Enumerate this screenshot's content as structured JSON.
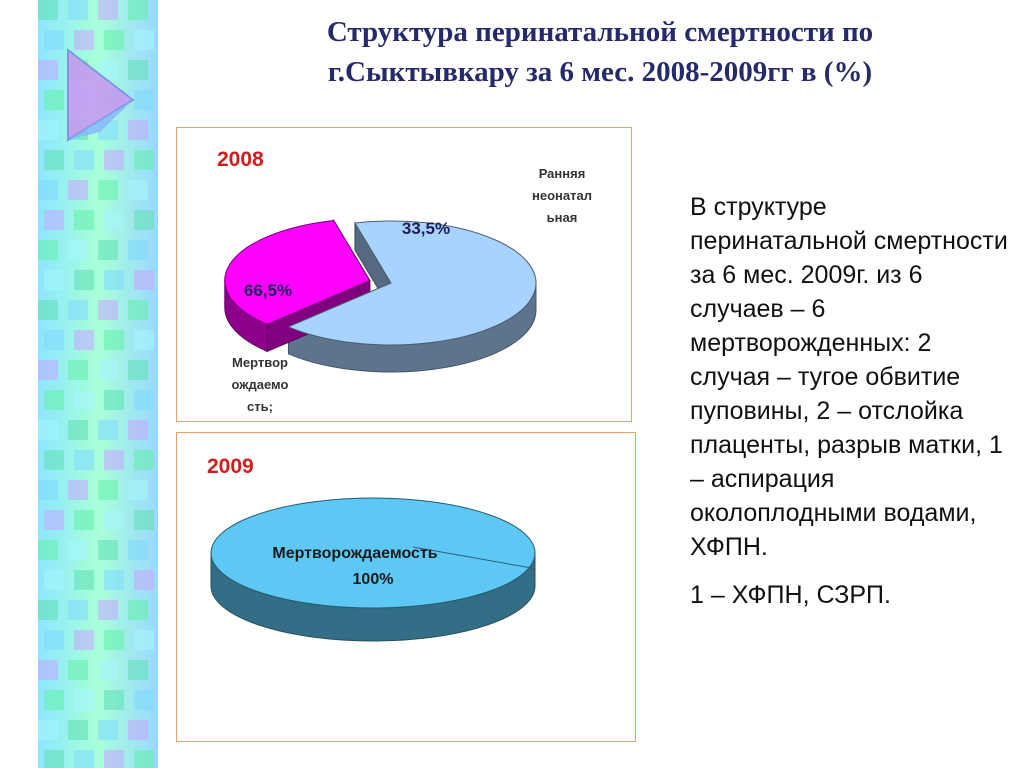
{
  "slide": {
    "title_line1": "Структура перинатальной смертности по",
    "title_line2": "г.Сыктывкару за 6 мес. 2008-2009гг в (%)",
    "paragraph1": "В структуре перинатальной смертности за 6 мес. 2009г. из 6 случаев – 6 мертворожденных: 2 случая – тугое обвитие пуповины, 2 – отслойка плаценты, разрыв матки, 1 – аспирация околоплодными водами, ХФПН.",
    "paragraph2": "1 – ХФПН, СЗРП."
  },
  "colors": {
    "title": "#262a6b",
    "year_label": "#d41c1c",
    "frame_border": "#e8a070",
    "slice_stillbirth_2008": "#a9d3ff",
    "slice_neonatal_2008": "#ff00ff",
    "slice_stillbirth_2009": "#5ec8f4"
  },
  "chart_data": [
    {
      "type": "pie",
      "style": "3d",
      "title": "2008",
      "slices": [
        {
          "label": "Мертворождаемость;",
          "value": 66.5,
          "data_label": "66,5%",
          "color": "#a9d3ff",
          "exploded": false
        },
        {
          "label": "Ранняя неонатальная",
          "value": 33.5,
          "data_label": "33,5%",
          "color": "#ff00ff",
          "exploded": true
        }
      ],
      "side_labels": {
        "left": [
          "Мертвор",
          "ождаемо",
          "сть;"
        ],
        "right": [
          "Ранняя",
          "неонатал",
          "ьная"
        ]
      }
    },
    {
      "type": "pie",
      "style": "3d",
      "title": "2009",
      "slices": [
        {
          "label": "Мертворождаемость",
          "value": 100,
          "data_label": "100%",
          "color": "#5ec8f4"
        }
      ],
      "data_label_name": "Мертворождаемость"
    }
  ]
}
